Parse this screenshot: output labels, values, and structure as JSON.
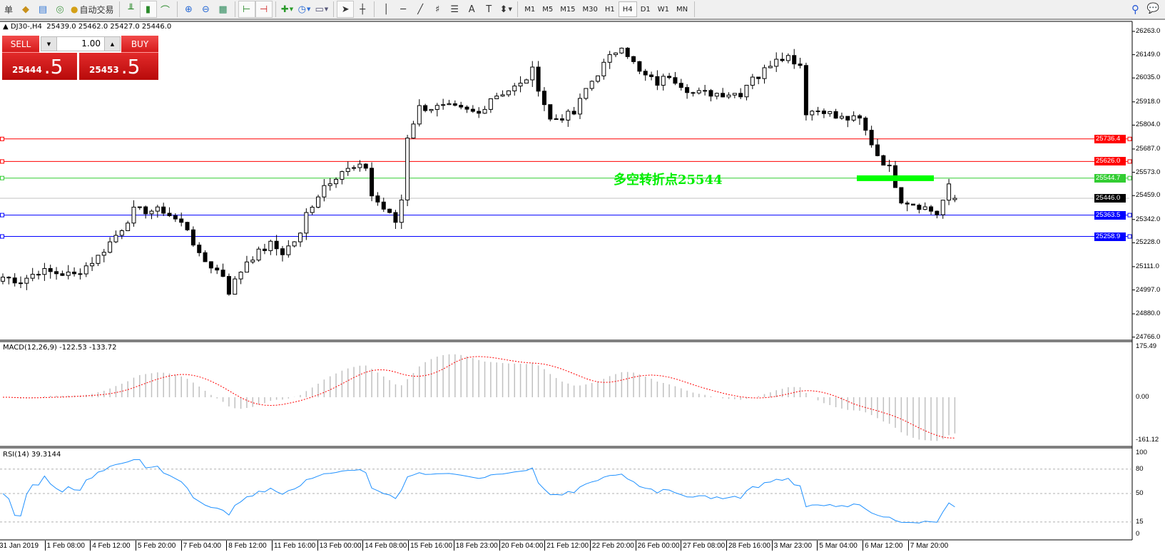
{
  "toolbar": {
    "left_cut_label": "单",
    "auto_trade_label": "自动交易",
    "icons": [
      "market-watch-icon",
      "navigator-icon",
      "signals-icon",
      "autotrading-icon",
      "bar-chart-icon",
      "candlestick-icon",
      "line-chart-icon",
      "zoom-in-icon",
      "zoom-out-icon",
      "tile-windows-icon",
      "chart-shift-icon",
      "autoscroll-icon",
      "indicators-icon",
      "periods-icon",
      "templates-icon",
      "cursor-icon",
      "crosshair-icon",
      "vertical-line-icon",
      "horizontal-line-icon",
      "trendline-icon",
      "fibonacci-icon",
      "fibo-levels-icon",
      "text-icon",
      "text-label-icon",
      "arrows-icon"
    ],
    "timeframes": [
      "M1",
      "M5",
      "M15",
      "M30",
      "H1",
      "H4",
      "D1",
      "W1",
      "MN"
    ],
    "active_timeframe": "H4"
  },
  "chart_header": {
    "symbol": "DJ30-,H4",
    "open": "25439.0",
    "high": "25462.0",
    "low": "25427.0",
    "close": "25446.0"
  },
  "trade_panel": {
    "sell_label": "SELL",
    "buy_label": "BUY",
    "lot": "1.00",
    "sell_price_main": "25444",
    "sell_price_frac": ".5",
    "buy_price_main": "25453",
    "buy_price_frac": ".5"
  },
  "price_axis": [
    "26263.0",
    "26149.0",
    "26035.0",
    "25918.0",
    "25804.0",
    "25687.0",
    "25573.0",
    "25459.0",
    "25342.0",
    "25228.0",
    "25111.0",
    "24997.0",
    "24880.0",
    "24766.0"
  ],
  "levels": [
    {
      "price": 25736.4,
      "label": "25736.4",
      "color": "#ff0000"
    },
    {
      "price": 25626.0,
      "label": "25626.0",
      "color": "#ff0000"
    },
    {
      "price": 25544.7,
      "label": "25544.7",
      "color": "#32cd32"
    },
    {
      "price": 25446.0,
      "label": "25446.0",
      "color": "#000000",
      "line_color": "#c0c0c0"
    },
    {
      "price": 25363.5,
      "label": "25363.5",
      "color": "#0000ff"
    },
    {
      "price": 25258.9,
      "label": "25258.9",
      "color": "#0000ff"
    }
  ],
  "annotation": {
    "text": "多空转折点25544",
    "color": "#00ff00",
    "zone_price": 25544
  },
  "price_path": [
    [
      0,
      25060
    ],
    [
      3,
      25040
    ],
    [
      6,
      25090
    ],
    [
      9,
      25080
    ],
    [
      12,
      25070
    ],
    [
      16,
      25160
    ],
    [
      20,
      25300
    ],
    [
      22,
      25385
    ],
    [
      27,
      25385
    ],
    [
      31,
      25300
    ],
    [
      33,
      25160
    ],
    [
      37,
      25070
    ],
    [
      38,
      24990
    ],
    [
      41,
      25140
    ],
    [
      43,
      25180
    ],
    [
      45,
      25220
    ],
    [
      47,
      25180
    ],
    [
      50,
      25265
    ],
    [
      51,
      25370
    ],
    [
      54,
      25510
    ],
    [
      57,
      25580
    ],
    [
      61,
      25600
    ],
    [
      62,
      25460
    ],
    [
      66,
      25330
    ],
    [
      67,
      25440
    ],
    [
      68,
      25750
    ],
    [
      70,
      25890
    ],
    [
      75,
      25890
    ],
    [
      80,
      25860
    ],
    [
      82,
      25940
    ],
    [
      87,
      26000
    ],
    [
      89,
      26070
    ],
    [
      92,
      25830
    ],
    [
      96,
      25860
    ],
    [
      98,
      25980
    ],
    [
      101,
      26100
    ],
    [
      104,
      26200
    ],
    [
      107,
      26060
    ],
    [
      110,
      26010
    ],
    [
      112,
      26050
    ],
    [
      116,
      25960
    ],
    [
      120,
      25960
    ],
    [
      124,
      25960
    ],
    [
      126,
      26050
    ],
    [
      127,
      26040
    ],
    [
      130,
      26140
    ],
    [
      132,
      26140
    ],
    [
      134,
      26100
    ],
    [
      135,
      25870
    ],
    [
      138,
      25880
    ],
    [
      140,
      25840
    ],
    [
      144,
      25830
    ],
    [
      147,
      25660
    ],
    [
      149,
      25590
    ],
    [
      151,
      25440
    ],
    [
      153,
      25420
    ],
    [
      155,
      25400
    ],
    [
      157,
      25370
    ],
    [
      159,
      25500
    ],
    [
      160,
      25446
    ]
  ],
  "macd": {
    "label": "MACD(12,26,9) -122.53 -133.72",
    "axis": [
      "175.49",
      "0.00",
      "-161.12"
    ],
    "max": 175.49,
    "min": -161.12,
    "hist_color": "#c0c0c0",
    "signal_color": "#ff0000"
  },
  "rsi": {
    "label": "RSI(14) 39.3144",
    "axis": [
      "100",
      "80",
      "50",
      "15",
      "0"
    ],
    "levels": [
      80,
      50,
      15
    ],
    "color": "#1e90ff"
  },
  "time_axis": [
    "31 Jan 2019",
    "1 Feb 08:00",
    "4 Feb 12:00",
    "5 Feb 20:00",
    "7 Feb 04:00",
    "8 Feb 12:00",
    "11 Feb 16:00",
    "13 Feb 00:00",
    "14 Feb 08:00",
    "15 Feb 16:00",
    "18 Feb 23:00",
    "20 Feb 04:00",
    "21 Feb 12:00",
    "22 Feb 20:00",
    "26 Feb 00:00",
    "27 Feb 08:00",
    "28 Feb 16:00",
    "3 Mar 23:00",
    "5 Mar 04:00",
    "6 Mar 12:00",
    "7 Mar 20:00"
  ]
}
